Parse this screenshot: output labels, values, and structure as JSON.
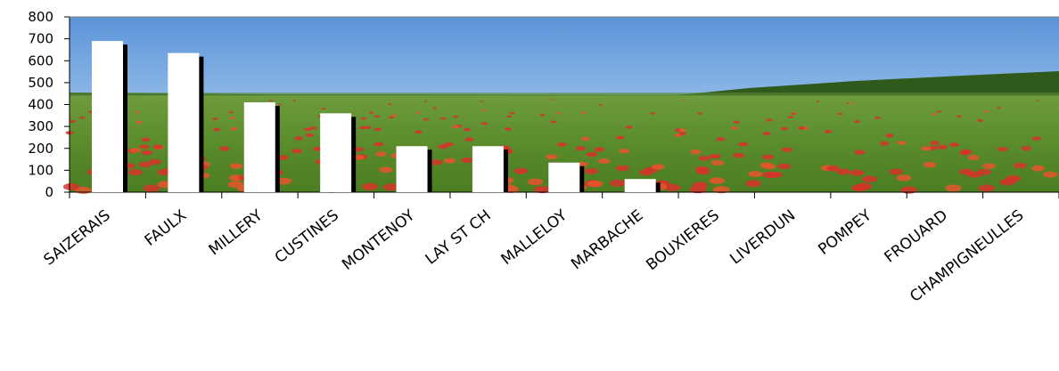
{
  "chart_data": {
    "type": "bar",
    "title": "",
    "xlabel": "",
    "ylabel": "",
    "categories": [
      "SAIZERAIS",
      "FAULX",
      "MILLERY",
      "CUSTINES",
      "MONTENOY",
      "LAY ST CH",
      "MALLELOY",
      "MARBACHE",
      "BOUXIERES",
      "LIVERDUN",
      "POMPEY",
      "FROUARD",
      "CHAMPIGNEULLES"
    ],
    "values": [
      690,
      635,
      410,
      360,
      210,
      210,
      135,
      60,
      0,
      0,
      0,
      0,
      0
    ],
    "ylim": [
      0,
      800
    ],
    "yticks": [
      0,
      100,
      200,
      300,
      400,
      500,
      600,
      700,
      800
    ],
    "grid": false,
    "legend": "none",
    "bar_color": "#ffffff",
    "bar_shadow_color": "#000000",
    "plot_background": "meadow with red poppies under blue sky"
  }
}
